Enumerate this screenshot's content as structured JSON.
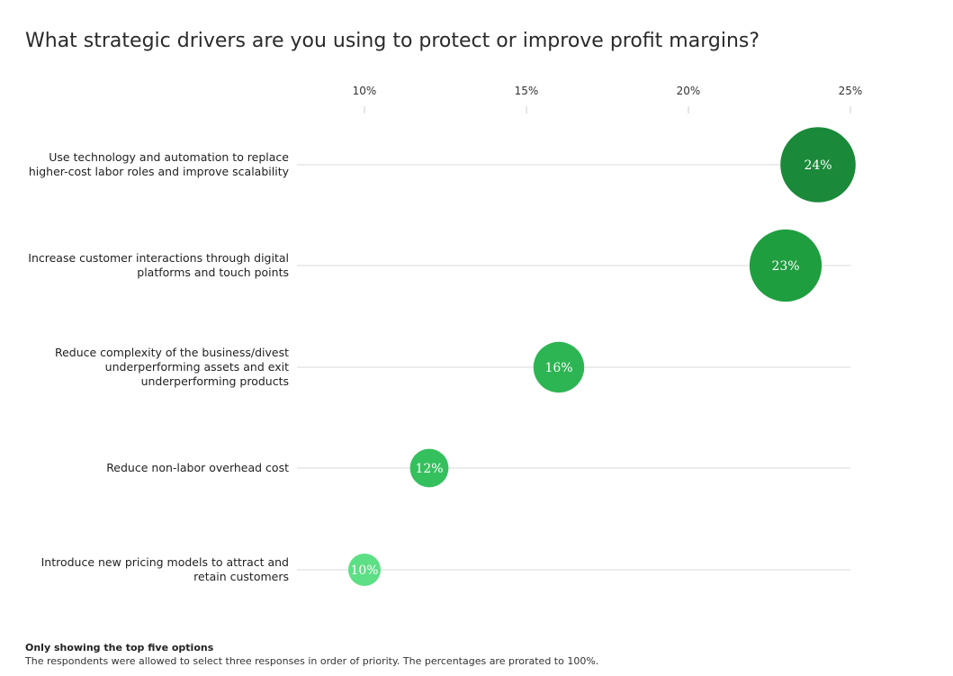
{
  "title": "What strategic drivers are you using to protect or improve profit margins?",
  "footnote": {
    "heading": "Only showing the top five options",
    "text": "The respondents were allowed to select three responses in order of priority. The percentages are prorated to 100%."
  },
  "chart_data": {
    "type": "scatter",
    "orientation": "horizontal-dot",
    "x_ticks": [
      10,
      15,
      20,
      25
    ],
    "x_tick_labels": [
      "10%",
      "15%",
      "20%",
      "25%"
    ],
    "xlim": [
      10,
      25
    ],
    "xaxis_position": "top",
    "grid": true,
    "categories": [
      [
        "Use technology and automation to replace",
        "higher-cost labor roles and improve scalability"
      ],
      [
        "Increase customer interactions through digital",
        "platforms and touch points"
      ],
      [
        "Reduce complexity of the business/divest",
        "underperforming assets and exit",
        "underperforming products"
      ],
      [
        "Reduce non-labor overhead cost"
      ],
      [
        "Introduce new pricing models to attract and",
        "retain customers"
      ]
    ],
    "values": [
      24,
      23,
      16,
      12,
      10
    ],
    "value_labels": [
      "24%",
      "23%",
      "16%",
      "12%",
      "10%"
    ],
    "colors": [
      "#1a8a3a",
      "#1f9e40",
      "#2db553",
      "#35c05e",
      "#5ddf85"
    ]
  }
}
